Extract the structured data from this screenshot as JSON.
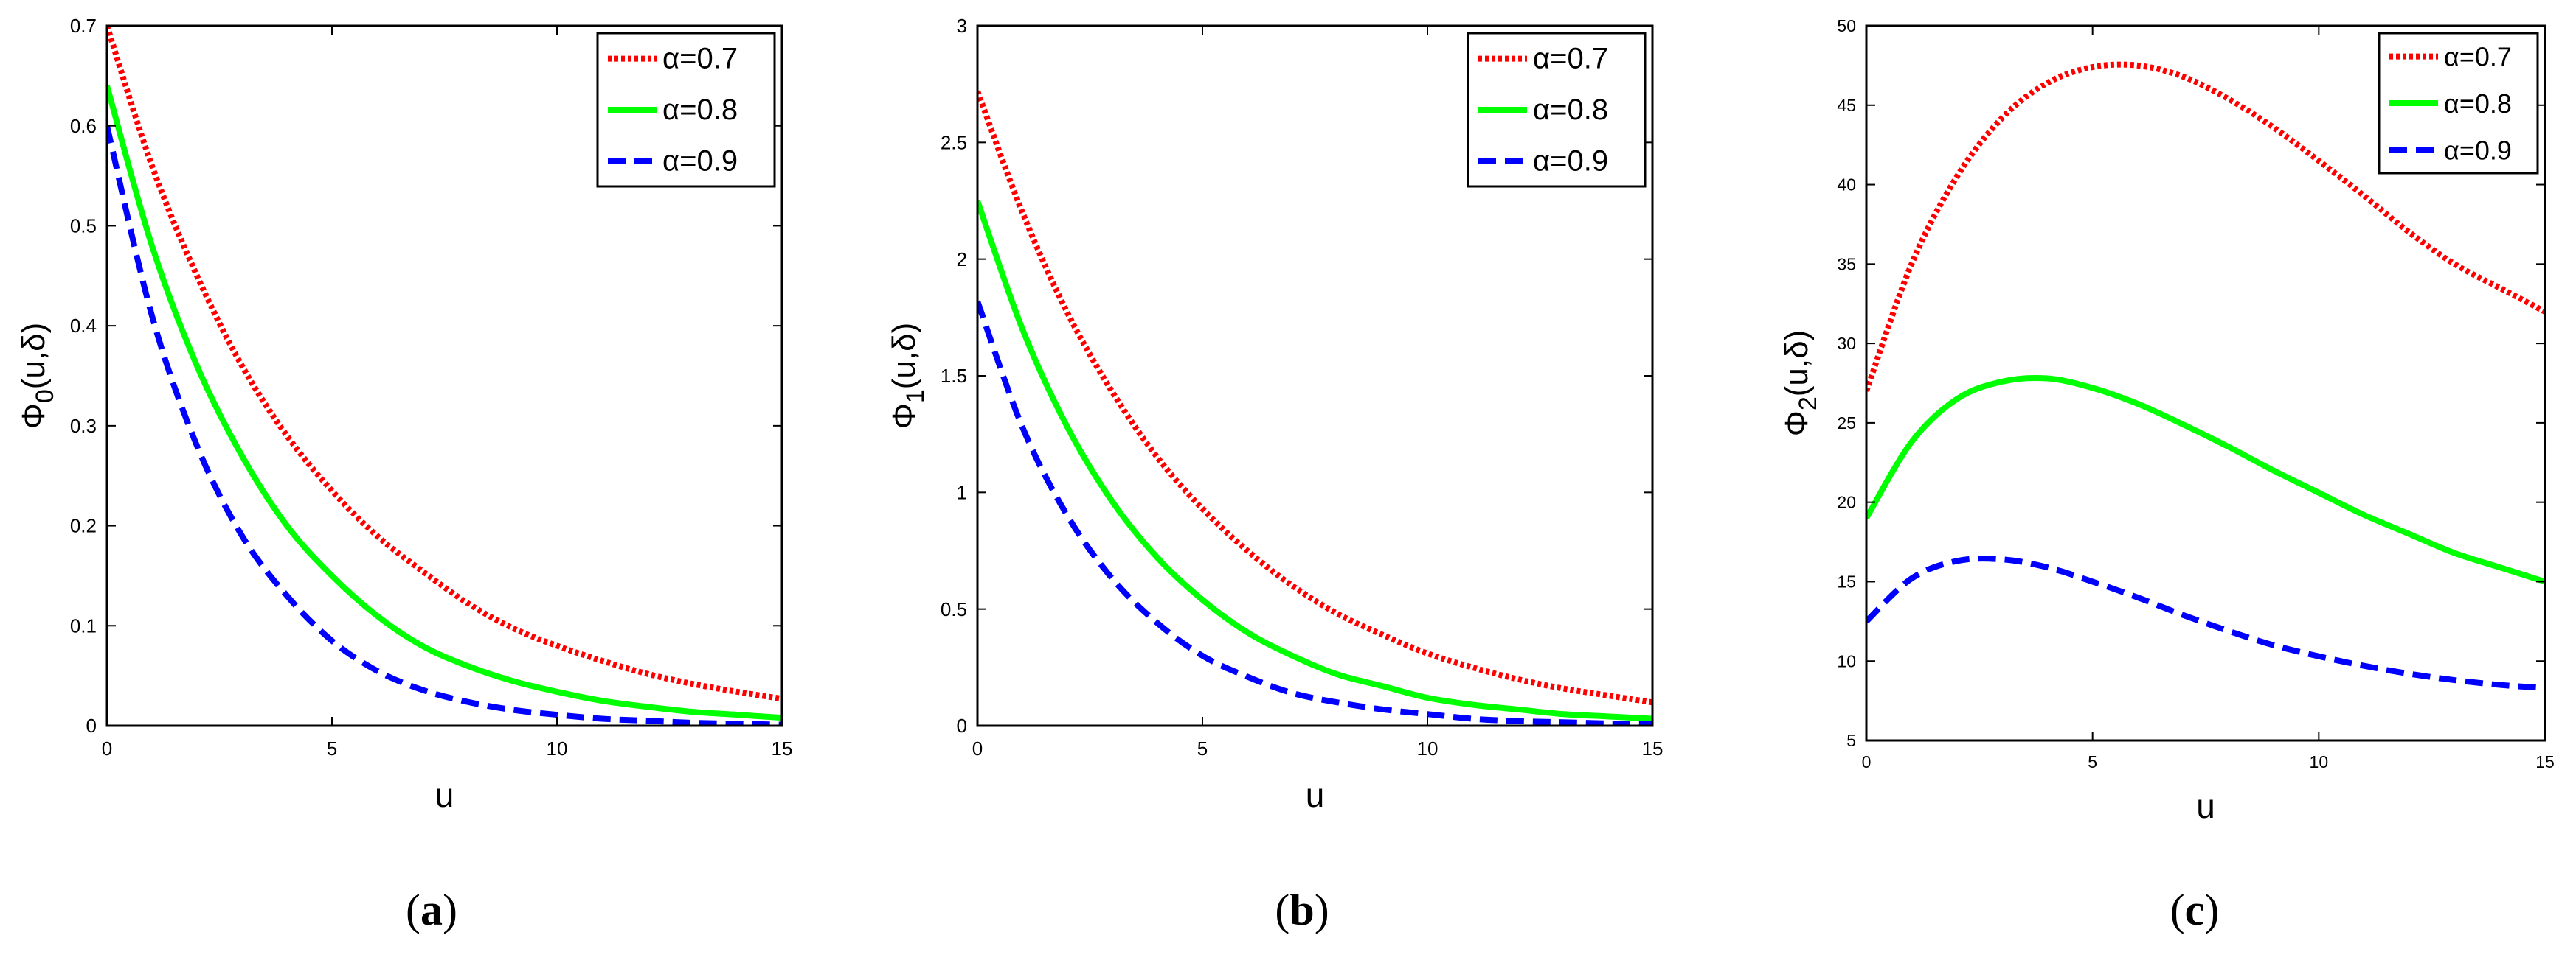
{
  "legend_labels": [
    "α=0.7",
    "α=0.8",
    "α=0.9"
  ],
  "colors": {
    "alpha07": "#ff0000",
    "alpha08": "#00ff00",
    "alpha09": "#0000ff"
  },
  "panels": [
    {
      "caption_letter": "a",
      "ylabel_main": "Φ",
      "ylabel_sub": "0",
      "ylabel_args": "(u,δ)",
      "xlabel": "u"
    },
    {
      "caption_letter": "b",
      "ylabel_main": "Φ",
      "ylabel_sub": "1",
      "ylabel_args": "(u,δ)",
      "xlabel": "u"
    },
    {
      "caption_letter": "c",
      "ylabel_main": "Φ",
      "ylabel_sub": "2",
      "ylabel_args": "(u,δ)",
      "xlabel": "u"
    }
  ],
  "chart_data": [
    {
      "type": "line",
      "xlabel": "u",
      "ylabel": "Φ0(u,δ)",
      "xlim": [
        0,
        15
      ],
      "ylim": [
        0,
        0.7
      ],
      "xticks": [
        0,
        5,
        10,
        15
      ],
      "yticks": [
        0,
        0.1,
        0.2,
        0.3,
        0.4,
        0.5,
        0.6,
        0.7
      ],
      "ytick_labels": [
        "0",
        "0.1",
        "0.2",
        "0.3",
        "0.4",
        "0.5",
        "0.6",
        "0.7"
      ],
      "legend": "top-right",
      "x": [
        0,
        1,
        2,
        3,
        4,
        5,
        6,
        7,
        8,
        9,
        10,
        11,
        12,
        13,
        14,
        15
      ],
      "series": [
        {
          "name": "α=0.7",
          "values": [
            0.7,
            0.56,
            0.45,
            0.36,
            0.29,
            0.235,
            0.19,
            0.155,
            0.123,
            0.098,
            0.08,
            0.065,
            0.052,
            0.042,
            0.034,
            0.027
          ]
        },
        {
          "name": "α=0.8",
          "values": [
            0.64,
            0.48,
            0.36,
            0.27,
            0.2,
            0.15,
            0.11,
            0.08,
            0.06,
            0.045,
            0.034,
            0.025,
            0.019,
            0.014,
            0.011,
            0.008
          ]
        },
        {
          "name": "α=0.9",
          "values": [
            0.6,
            0.41,
            0.28,
            0.19,
            0.13,
            0.085,
            0.055,
            0.036,
            0.024,
            0.016,
            0.011,
            0.007,
            0.005,
            0.003,
            0.002,
            0.001
          ]
        }
      ]
    },
    {
      "type": "line",
      "xlabel": "u",
      "ylabel": "Φ1(u,δ)",
      "xlim": [
        0,
        15
      ],
      "ylim": [
        0,
        3
      ],
      "xticks": [
        0,
        5,
        10,
        15
      ],
      "yticks": [
        0,
        0.5,
        1,
        1.5,
        2,
        2.5,
        3
      ],
      "ytick_labels": [
        "0",
        "0.5",
        "1",
        "1.5",
        "2",
        "2.5",
        "3"
      ],
      "legend": "top-right",
      "x": [
        0,
        1,
        2,
        3,
        4,
        5,
        6,
        7,
        8,
        9,
        10,
        11,
        12,
        13,
        14,
        15
      ],
      "series": [
        {
          "name": "α=0.7",
          "values": [
            2.72,
            2.2,
            1.77,
            1.43,
            1.15,
            0.93,
            0.75,
            0.6,
            0.48,
            0.39,
            0.31,
            0.25,
            0.2,
            0.16,
            0.13,
            0.1
          ]
        },
        {
          "name": "α=0.8",
          "values": [
            2.25,
            1.7,
            1.28,
            0.96,
            0.72,
            0.54,
            0.4,
            0.3,
            0.22,
            0.17,
            0.12,
            0.09,
            0.07,
            0.05,
            0.04,
            0.03
          ]
        },
        {
          "name": "α=0.9",
          "values": [
            1.82,
            1.28,
            0.9,
            0.63,
            0.44,
            0.3,
            0.21,
            0.14,
            0.1,
            0.07,
            0.05,
            0.03,
            0.02,
            0.015,
            0.01,
            0.007
          ]
        }
      ]
    },
    {
      "type": "line",
      "xlabel": "u",
      "ylabel": "Φ2(u,δ)",
      "xlim": [
        0,
        15
      ],
      "ylim": [
        5,
        50
      ],
      "xticks": [
        0,
        5,
        10,
        15
      ],
      "yticks": [
        5,
        10,
        15,
        20,
        25,
        30,
        35,
        40,
        45,
        50
      ],
      "ytick_labels": [
        "5",
        "10",
        "15",
        "20",
        "25",
        "30",
        "35",
        "40",
        "45",
        "50"
      ],
      "legend": "top-right",
      "x": [
        0,
        1,
        2,
        3,
        4,
        5,
        6,
        7,
        8,
        9,
        10,
        11,
        12,
        13,
        14,
        15
      ],
      "series": [
        {
          "name": "α=0.7",
          "values": [
            27.0,
            35.0,
            40.5,
            44.2,
            46.4,
            47.4,
            47.5,
            46.8,
            45.4,
            43.6,
            41.5,
            39.3,
            37.0,
            35.0,
            33.5,
            32.0
          ]
        },
        {
          "name": "α=0.8",
          "values": [
            19.0,
            23.8,
            26.5,
            27.6,
            27.8,
            27.2,
            26.2,
            24.9,
            23.5,
            22.0,
            20.6,
            19.2,
            18.0,
            16.8,
            15.9,
            15.0
          ]
        },
        {
          "name": "α=0.9",
          "values": [
            12.5,
            15.2,
            16.3,
            16.4,
            15.9,
            15.0,
            14.0,
            12.9,
            11.9,
            11.0,
            10.3,
            9.7,
            9.2,
            8.8,
            8.5,
            8.3
          ]
        }
      ]
    }
  ]
}
